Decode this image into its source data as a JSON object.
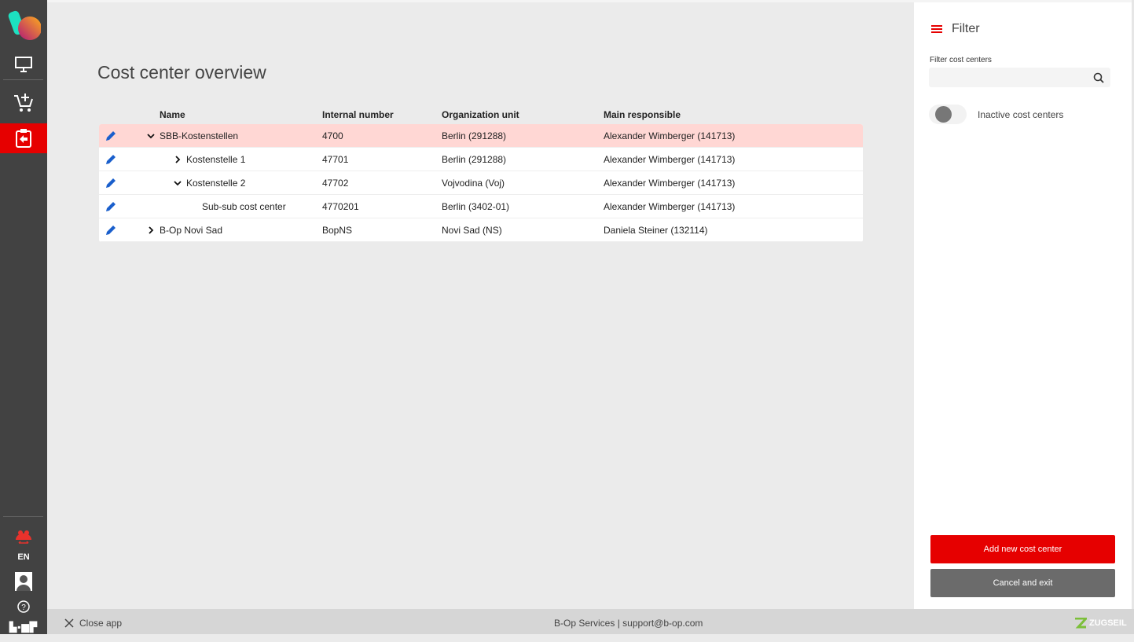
{
  "sidebar": {
    "language": "EN",
    "brand": "b-op"
  },
  "page": {
    "title": "Cost center overview"
  },
  "table": {
    "headers": [
      "Name",
      "Internal number",
      "Organization unit",
      "Main responsible"
    ],
    "rows": [
      {
        "name": "SBB-Kostenstellen",
        "number": "4700",
        "org": "Berlin (291288)",
        "responsible": "Alexander Wimberger (141713)",
        "level": 0,
        "toggle": "expanded",
        "selected": true
      },
      {
        "name": "Kostenstelle 1",
        "number": "47701",
        "org": "Berlin (291288)",
        "responsible": "Alexander Wimberger (141713)",
        "level": 1,
        "toggle": "collapsed"
      },
      {
        "name": "Kostenstelle 2",
        "number": "47702",
        "org": "Vojvodina (Voj)",
        "responsible": "Alexander Wimberger (141713)",
        "level": 1,
        "toggle": "expanded"
      },
      {
        "name": "Sub-sub cost center",
        "number": "4770201",
        "org": "Berlin (3402-01)",
        "responsible": "Alexander Wimberger (141713)",
        "level": 2,
        "toggle": "none"
      },
      {
        "name": "B-Op Novi Sad",
        "number": "BopNS",
        "org": "Novi Sad (NS)",
        "responsible": "Daniela Steiner (132114)",
        "level": 0,
        "toggle": "collapsed"
      }
    ]
  },
  "filter": {
    "title": "Filter",
    "search_label": "Filter cost centers",
    "search_value": "",
    "inactive_label": "Inactive cost centers",
    "inactive_on": false,
    "add_button": "Add new cost center",
    "cancel_button": "Cancel and exit"
  },
  "footer": {
    "close": "Close app",
    "center": "B-Op Services | support@b-op.com",
    "logo": "ZUGSEIL"
  },
  "colors": {
    "accent": "#e60000",
    "selected_row": "#ffd7d4",
    "edit_icon": "#1a5fcc",
    "cancel": "#6b6b6b"
  }
}
